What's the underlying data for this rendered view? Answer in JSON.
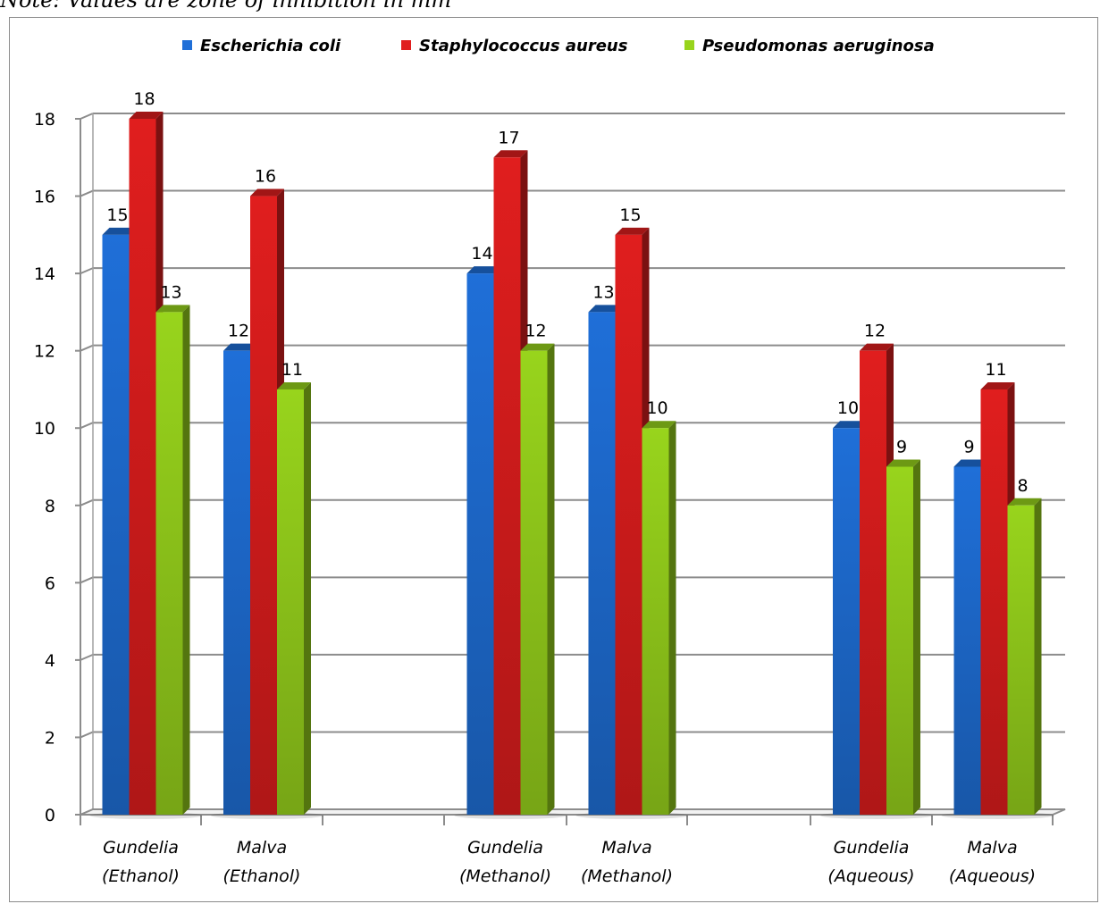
{
  "note": "Note: Values are zone of inhibition in mm",
  "chart_data": {
    "type": "bar",
    "style": "3d-clustered-column",
    "title": "",
    "xlabel": "",
    "ylabel": "",
    "ylim": [
      0,
      18
    ],
    "yticks": [
      0,
      2,
      4,
      6,
      8,
      10,
      12,
      14,
      16,
      18
    ],
    "grid": true,
    "legend_position": "top",
    "categories": [
      [
        "Gundelia",
        "(Ethanol)"
      ],
      [
        "Malva",
        "(Ethanol)"
      ],
      [
        "Gundelia",
        "(Methanol)"
      ],
      [
        "Malva",
        "(Methanol)"
      ],
      [
        "Gundelia",
        "(Aqueous)"
      ],
      [
        "Malva",
        "(Aqueous)"
      ]
    ],
    "series": [
      {
        "name": "Escherichia coli",
        "color": "#1f6fd8",
        "values": [
          15,
          12,
          14,
          13,
          10,
          9
        ]
      },
      {
        "name": "Staphylococcus aureus",
        "color": "#e01e1e",
        "values": [
          18,
          16,
          17,
          15,
          12,
          11
        ]
      },
      {
        "name": "Pseudomonas aeruginosa",
        "color": "#98d41c",
        "values": [
          13,
          11,
          12,
          10,
          9,
          8
        ]
      }
    ]
  }
}
